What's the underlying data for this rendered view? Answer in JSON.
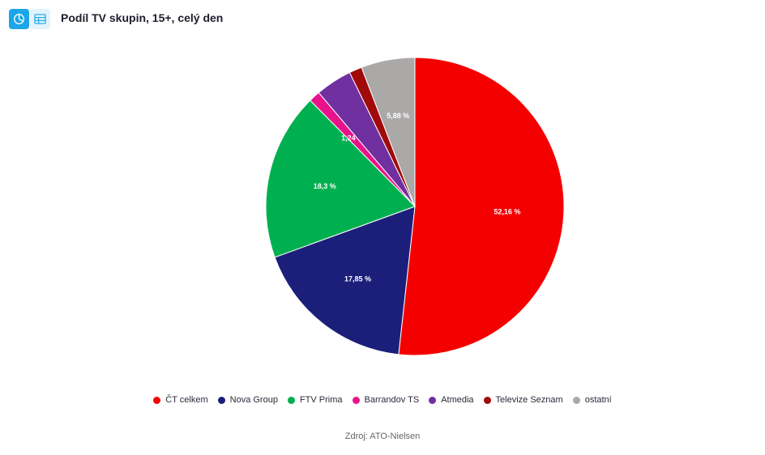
{
  "header": {
    "title": "Podíl TV skupin, 15+, celý den",
    "buttons": [
      {
        "icon": "pie-chart-icon",
        "active": true
      },
      {
        "icon": "table-icon",
        "active": false
      }
    ]
  },
  "chart_data": {
    "type": "pie",
    "title": "Podíl TV skupin, 15+, celý den",
    "unit": "%",
    "start_angle_deg": 0,
    "direction": "clockwise",
    "legend_position": "bottom",
    "slices": [
      {
        "name": "ČT celkem",
        "value": 52.16,
        "label": "52,16 %",
        "color": "#f50000"
      },
      {
        "name": "Nova Group",
        "value": 17.85,
        "label": "17,85 %",
        "color": "#1c1f7a"
      },
      {
        "name": "FTV Prima",
        "value": 18.3,
        "label": "18,3 %",
        "color": "#00b050"
      },
      {
        "name": "Barrandov TS",
        "value": 1.24,
        "label": "1,24 %",
        "color": "#e8138a"
      },
      {
        "name": "Atmedia",
        "value": 3.98,
        "label": "",
        "color": "#7030a0"
      },
      {
        "name": "Televize Seznam",
        "value": 1.39,
        "label": "",
        "color": "#a00a0a"
      },
      {
        "name": "ostatní",
        "value": 5.88,
        "label": "5,88 %",
        "color": "#aba8a8"
      }
    ]
  },
  "footer": {
    "source": "Zdroj: ATO-Nielsen"
  }
}
